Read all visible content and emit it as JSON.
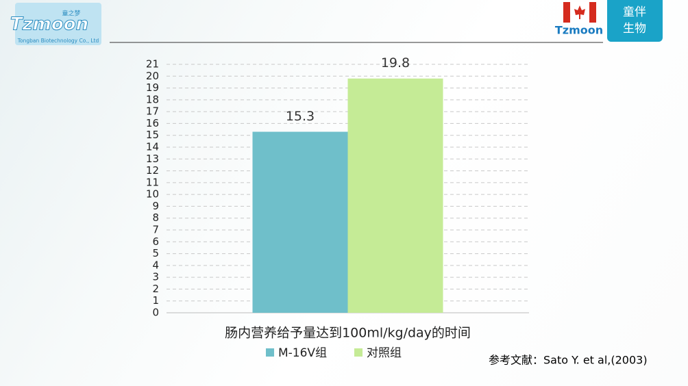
{
  "header": {
    "logo_text": "Tzmoon",
    "logo_tagline": "童之梦",
    "company": "Tongban Biotechnology Co., Ltd",
    "brand": "Tzmoon",
    "badge": [
      "童伴",
      "生物"
    ]
  },
  "chart_data": {
    "type": "bar",
    "categories": [
      "肠内营养给予量达到100ml/kg/day的时间"
    ],
    "series": [
      {
        "name": "M-16V组",
        "color": "#6fbfca",
        "values": [
          15.3
        ]
      },
      {
        "name": "对照组",
        "color": "#c5eb96",
        "values": [
          19.8
        ]
      }
    ],
    "ylim": [
      0,
      21
    ],
    "yticks": [
      0,
      1,
      2,
      3,
      4,
      5,
      6,
      7,
      8,
      9,
      10,
      11,
      12,
      13,
      14,
      15,
      16,
      17,
      18,
      19,
      20,
      21
    ],
    "grid": true,
    "legend": "bottom"
  },
  "reference": "参考文献：Sato Y. et al,(2003)"
}
